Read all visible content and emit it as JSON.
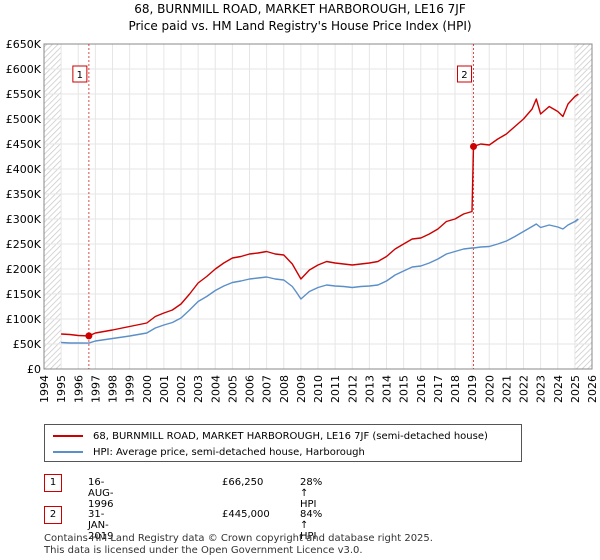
{
  "title": "68, BURNMILL ROAD, MARKET HARBOROUGH, LE16 7JF",
  "subtitle": "Price paid vs. HM Land Registry's House Price Index (HPI)",
  "chart_data": {
    "type": "line",
    "title": "68, BURNMILL ROAD, MARKET HARBOROUGH, LE16 7JF",
    "subtitle": "Price paid vs. HM Land Registry's House Price Index (HPI)",
    "xlabel": "",
    "ylabel": "",
    "xlim": [
      1994,
      2026
    ],
    "ylim": [
      0,
      650000
    ],
    "x_ticks": [
      1994,
      1995,
      1996,
      1997,
      1998,
      1999,
      2000,
      2001,
      2002,
      2003,
      2004,
      2005,
      2006,
      2007,
      2008,
      2009,
      2010,
      2011,
      2012,
      2013,
      2014,
      2015,
      2016,
      2017,
      2018,
      2019,
      2020,
      2021,
      2022,
      2023,
      2024,
      2025,
      2026
    ],
    "y_ticks": [
      {
        "value": 0,
        "label": "£0"
      },
      {
        "value": 50000,
        "label": "£50K"
      },
      {
        "value": 100000,
        "label": "£100K"
      },
      {
        "value": 150000,
        "label": "£150K"
      },
      {
        "value": 200000,
        "label": "£200K"
      },
      {
        "value": 250000,
        "label": "£250K"
      },
      {
        "value": 300000,
        "label": "£300K"
      },
      {
        "value": 350000,
        "label": "£350K"
      },
      {
        "value": 400000,
        "label": "£400K"
      },
      {
        "value": 450000,
        "label": "£450K"
      },
      {
        "value": 500000,
        "label": "£500K"
      },
      {
        "value": 550000,
        "label": "£550K"
      },
      {
        "value": 600000,
        "label": "£600K"
      },
      {
        "value": 650000,
        "label": "£650K"
      }
    ],
    "grid": true,
    "hatched_regions": [
      {
        "from": 1994,
        "to": 1995
      },
      {
        "from": 2025.0,
        "to": 2026
      }
    ],
    "series": [
      {
        "name": "68, BURNMILL ROAD, MARKET HARBOROUGH, LE16 7JF (semi-detached house)",
        "color": "#cc0000",
        "x": [
          1995.0,
          1995.5,
          1996.0,
          1996.62,
          1997.0,
          1998.0,
          1999.0,
          2000.0,
          2000.5,
          2001.0,
          2001.5,
          2002.0,
          2002.5,
          2003.0,
          2003.5,
          2004.0,
          2004.5,
          2005.0,
          2005.5,
          2006.0,
          2006.5,
          2007.0,
          2007.5,
          2008.0,
          2008.5,
          2008.75,
          2009.0,
          2009.5,
          2010.0,
          2010.5,
          2011.0,
          2011.5,
          2012.0,
          2012.5,
          2013.0,
          2013.5,
          2014.0,
          2014.5,
          2015.0,
          2015.5,
          2016.0,
          2016.5,
          2017.0,
          2017.5,
          2018.0,
          2018.5,
          2018.99,
          2019.08,
          2019.5,
          2020.0,
          2020.5,
          2021.0,
          2021.5,
          2022.0,
          2022.5,
          2022.75,
          2023.0,
          2023.5,
          2024.0,
          2024.3,
          2024.6,
          2025.0,
          2025.2
        ],
        "y": [
          70000,
          69000,
          67000,
          66250,
          72000,
          78000,
          85000,
          92000,
          105000,
          112000,
          118000,
          130000,
          150000,
          172000,
          185000,
          200000,
          212000,
          222000,
          225000,
          230000,
          232000,
          235000,
          230000,
          228000,
          210000,
          195000,
          180000,
          198000,
          208000,
          215000,
          212000,
          210000,
          208000,
          210000,
          212000,
          215000,
          225000,
          240000,
          250000,
          260000,
          262000,
          270000,
          280000,
          295000,
          300000,
          310000,
          315000,
          445000,
          450000,
          448000,
          460000,
          470000,
          485000,
          500000,
          520000,
          540000,
          510000,
          525000,
          515000,
          505000,
          530000,
          545000,
          550000
        ]
      },
      {
        "name": "HPI: Average price, semi-detached house, Harborough",
        "color": "#5b8fc9",
        "x": [
          1995.0,
          1995.5,
          1996.0,
          1996.62,
          1997.0,
          1998.0,
          1999.0,
          2000.0,
          2000.5,
          2001.0,
          2001.5,
          2002.0,
          2002.5,
          2003.0,
          2003.5,
          2004.0,
          2004.5,
          2005.0,
          2005.5,
          2006.0,
          2006.5,
          2007.0,
          2007.5,
          2008.0,
          2008.5,
          2008.75,
          2009.0,
          2009.5,
          2010.0,
          2010.5,
          2011.0,
          2011.5,
          2012.0,
          2012.5,
          2013.0,
          2013.5,
          2014.0,
          2014.5,
          2015.0,
          2015.5,
          2016.0,
          2016.5,
          2017.0,
          2017.5,
          2018.0,
          2018.5,
          2018.99,
          2019.08,
          2019.5,
          2020.0,
          2020.5,
          2021.0,
          2021.5,
          2022.0,
          2022.5,
          2022.75,
          2023.0,
          2023.5,
          2024.0,
          2024.3,
          2024.6,
          2025.0,
          2025.2
        ],
        "y": [
          53000,
          52000,
          52000,
          51800,
          56000,
          61000,
          66000,
          72000,
          82000,
          88000,
          93000,
          102000,
          118000,
          135000,
          145000,
          157000,
          166000,
          173000,
          176000,
          180000,
          182000,
          184000,
          180000,
          178000,
          165000,
          153000,
          140000,
          155000,
          163000,
          168000,
          166000,
          165000,
          163000,
          165000,
          166000,
          168000,
          176000,
          188000,
          196000,
          204000,
          206000,
          212000,
          220000,
          230000,
          235000,
          240000,
          242000,
          242000,
          244000,
          245000,
          250000,
          256000,
          265000,
          275000,
          285000,
          290000,
          283000,
          288000,
          284000,
          280000,
          288000,
          295000,
          300000
        ]
      }
    ],
    "annotations": [
      {
        "label": "1",
        "x": 1996.62,
        "y": 66250
      },
      {
        "label": "2",
        "x": 2019.08,
        "y": 445000
      }
    ]
  },
  "legend": {
    "entries": [
      {
        "label": "68, BURNMILL ROAD, MARKET HARBOROUGH, LE16 7JF (semi-detached house)",
        "color": "#cc0000"
      },
      {
        "label": "HPI: Average price, semi-detached house, Harborough",
        "color": "#5b8fc9"
      }
    ]
  },
  "sales": [
    {
      "num": "1",
      "date": "16-AUG-1996",
      "price": "£66,250",
      "hpi": "28% ↑ HPI"
    },
    {
      "num": "2",
      "date": "31-JAN-2019",
      "price": "£445,000",
      "hpi": "84% ↑ HPI"
    }
  ],
  "footer": {
    "line1": "Contains HM Land Registry data © Crown copyright and database right 2025.",
    "line2": "This data is licensed under the Open Government Licence v3.0."
  }
}
